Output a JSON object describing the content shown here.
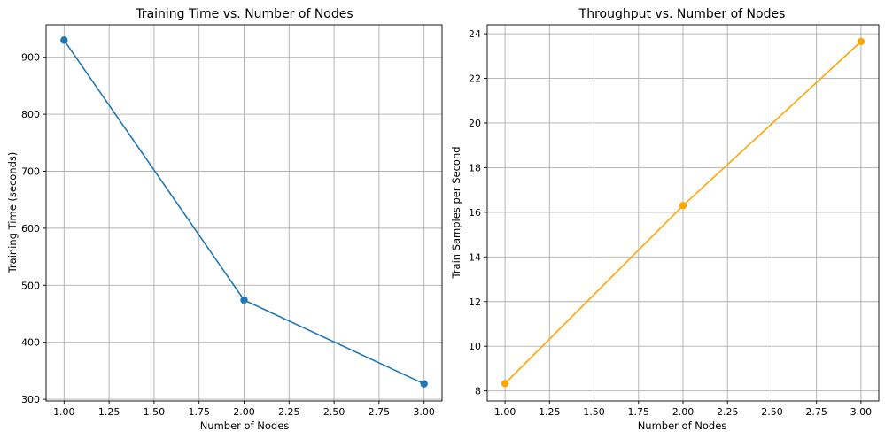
{
  "chart_data": [
    {
      "type": "line",
      "title": "Training Time vs. Number of Nodes",
      "xlabel": "Number of Nodes",
      "ylabel": "Training Time (seconds)",
      "xlim": [
        0.9,
        3.1
      ],
      "ylim": [
        297,
        957
      ],
      "xticks": [
        1.0,
        1.25,
        1.5,
        1.75,
        2.0,
        2.25,
        2.5,
        2.75,
        3.0
      ],
      "xtick_labels": [
        "1.00",
        "1.25",
        "1.50",
        "1.75",
        "2.00",
        "2.25",
        "2.50",
        "2.75",
        "3.00"
      ],
      "yticks": [
        300,
        400,
        500,
        600,
        700,
        800,
        900
      ],
      "ytick_labels": [
        "300",
        "400",
        "500",
        "600",
        "700",
        "800",
        "900"
      ],
      "grid": true,
      "series": [
        {
          "x": [
            1,
            2,
            3
          ],
          "values": [
            930,
            474,
            327
          ],
          "color": "#1f77b4",
          "marker": "circle"
        }
      ]
    },
    {
      "type": "line",
      "title": "Throughput vs. Number of Nodes",
      "xlabel": "Number of Nodes",
      "ylabel": "Train Samples per Second",
      "xlim": [
        0.9,
        3.1
      ],
      "ylim": [
        7.55,
        24.4
      ],
      "xticks": [
        1.0,
        1.25,
        1.5,
        1.75,
        2.0,
        2.25,
        2.5,
        2.75,
        3.0
      ],
      "xtick_labels": [
        "1.00",
        "1.25",
        "1.50",
        "1.75",
        "2.00",
        "2.25",
        "2.50",
        "2.75",
        "3.00"
      ],
      "yticks": [
        8,
        10,
        12,
        14,
        16,
        18,
        20,
        22,
        24
      ],
      "ytick_labels": [
        "8",
        "10",
        "12",
        "14",
        "16",
        "18",
        "20",
        "22",
        "24"
      ],
      "grid": true,
      "series": [
        {
          "x": [
            1,
            2,
            3
          ],
          "values": [
            8.33,
            16.3,
            23.65
          ],
          "color": "#ffa500",
          "marker": "circle"
        }
      ]
    }
  ]
}
